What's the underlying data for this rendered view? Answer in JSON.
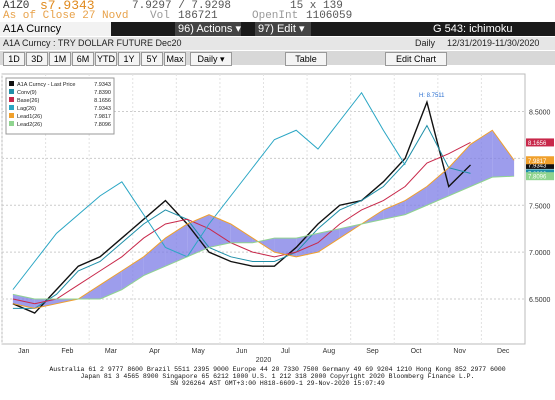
{
  "header": {
    "ticker": "A1Z0",
    "last": "s7.9343",
    "bid_ask": "7.9297 / 7.9298",
    "size": "15 x 139",
    "as_of": "As of Close 27 Novd",
    "vol_label": "Vol",
    "vol": "186721",
    "oi_label": "OpenInt",
    "oi": "1106059"
  },
  "menu": {
    "security": "A1A Curncy",
    "actions": "96) Actions ▾",
    "edit": "97) Edit ▾",
    "template": "G 543: ichimoku"
  },
  "info": {
    "description": "A1A Curncy : TRY DOLLAR FUTURE Dec20",
    "period": "Daily",
    "range": "12/31/2019-11/30/2020"
  },
  "toolbar": {
    "buttons": [
      "1D",
      "3D",
      "1M",
      "6M",
      "YTD",
      "1Y",
      "5Y",
      "Max"
    ],
    "frequency": "Daily ▾",
    "table": "Table",
    "edit_chart": "Edit Chart"
  },
  "chart_data": {
    "type": "line",
    "categories": [
      "Jan",
      null,
      "Feb",
      null,
      "Mar",
      null,
      "Apr",
      null,
      "May",
      null,
      "Jun",
      null,
      "Jul",
      null,
      "Aug",
      null,
      "Sep",
      null,
      "Oct",
      null,
      "Nov",
      null,
      "Dec",
      null
    ],
    "x_axis_label": "2020",
    "annotation": "H: 8.7511",
    "ylim": [
      6.02,
      8.9
    ],
    "yticks": [
      {
        "value": 6.5,
        "label": "6.5000"
      },
      {
        "value": 7,
        "label": "7.0000"
      },
      {
        "value": 7.5,
        "label": "7.5000"
      },
      {
        "value": 8,
        "label": "8.0000"
      },
      {
        "value": 8.5,
        "label": "8.5000"
      }
    ],
    "cloud_color": "#7c7ce6",
    "series": [
      {
        "name": "A1A Curncy - Last Price",
        "legend_value": "7.9343",
        "color": "#111111",
        "values": [
          6.45,
          6.35,
          6.6,
          6.85,
          6.95,
          7.15,
          7.35,
          7.55,
          7.3,
          7.0,
          6.9,
          6.85,
          6.85,
          7.05,
          7.3,
          7.5,
          7.55,
          7.75,
          8.0,
          8.6,
          7.7,
          7.93,
          null,
          null
        ]
      },
      {
        "name": "Conv(9)",
        "legend_value": "7.8390",
        "color": "#1f8fa8",
        "values": [
          6.4,
          6.4,
          6.55,
          6.8,
          6.9,
          7.1,
          7.3,
          7.45,
          7.35,
          7.05,
          6.95,
          6.9,
          6.9,
          7.0,
          7.25,
          7.45,
          7.55,
          7.7,
          7.95,
          8.35,
          7.9,
          7.84,
          null,
          null
        ]
      },
      {
        "name": "Base(26)",
        "legend_value": "8.1656",
        "color": "#c8284a",
        "values": [
          6.5,
          6.45,
          6.5,
          6.65,
          6.8,
          6.95,
          7.15,
          7.3,
          7.35,
          7.25,
          7.1,
          7.0,
          6.95,
          7.0,
          7.1,
          7.3,
          7.45,
          7.55,
          7.7,
          7.95,
          8.05,
          8.17,
          null,
          null
        ]
      },
      {
        "name": "Lag(26)",
        "legend_value": "7.9343",
        "color": "#2aa6c4",
        "values": [
          6.6,
          6.9,
          7.2,
          7.4,
          7.6,
          7.75,
          7.4,
          7.05,
          6.95,
          7.3,
          7.6,
          7.9,
          8.2,
          8.3,
          8.1,
          8.4,
          8.7,
          8.3,
          7.93,
          null,
          null,
          null,
          null,
          null
        ]
      },
      {
        "name": "Lead1(26)",
        "legend_value": "7.9817",
        "color": "#f0a02c",
        "values": [
          6.45,
          6.4,
          6.45,
          6.5,
          6.65,
          6.8,
          6.95,
          7.15,
          7.3,
          7.4,
          7.3,
          7.15,
          7.0,
          6.95,
          7.0,
          7.15,
          7.3,
          7.45,
          7.55,
          7.7,
          7.9,
          8.15,
          8.3,
          7.98
        ]
      },
      {
        "name": "Lead2(26)",
        "legend_value": "7.8096",
        "color": "#8fd48f",
        "values": [
          6.55,
          6.5,
          6.5,
          6.5,
          6.5,
          6.6,
          6.75,
          6.85,
          6.95,
          7.05,
          7.1,
          7.1,
          7.15,
          7.15,
          7.2,
          7.25,
          7.3,
          7.35,
          7.4,
          7.5,
          7.6,
          7.7,
          7.8,
          7.81
        ]
      }
    ]
  },
  "footer": {
    "lines": [
      "Australia 61 2 9777 8600 Brazil 5511 2395 9000 Europe 44 20 7330 7500 Germany 49 69 9204 1210 Hong Kong 852 2977 6000",
      "Japan 81 3 4565 8900 Singapore 65 6212 1000 U.S. 1 212 318 2000 Copyright 2020 Bloomberg Finance L.P.",
      "SN 926264 AST GMT+3:00 H818-6609-1 29-Nov-2020 15:07:49"
    ]
  }
}
